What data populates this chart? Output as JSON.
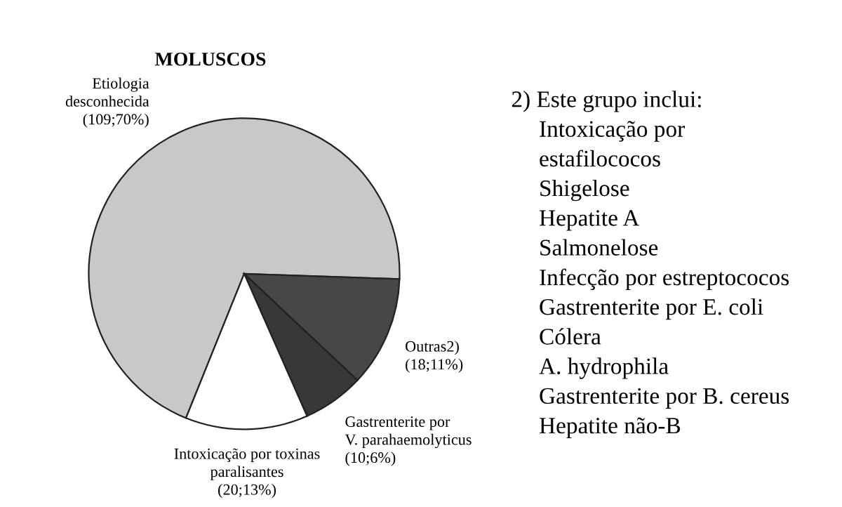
{
  "chart_data": {
    "type": "pie",
    "title": "MOLUSCOS",
    "categories": [
      "Etiologia\ndesconhecida",
      "Outras2)",
      "Gastrenterite por\nV. parahaemolyticus",
      "Intoxicação por toxinas\nparalisantes"
    ],
    "values": [
      109,
      18,
      10,
      20
    ],
    "value_labels": [
      "(109;70%)",
      "(18;11%)",
      "(10;6%)",
      "(20;13%)"
    ],
    "colors": [
      "#c8c8c8",
      "#474747",
      "#383838",
      "#ffffff"
    ],
    "annotations": [
      "2) Este grupo inclui:",
      "Intoxicação por",
      "estafilococos",
      "Shigelose",
      "Hepatite A",
      "Salmonelose",
      "Infecção por estreptococos",
      "Gastrenterite por E. coli",
      "Cólera",
      "A. hydrophila",
      "Gastrenterite por B. cereus",
      "Hepatite não-B"
    ]
  }
}
